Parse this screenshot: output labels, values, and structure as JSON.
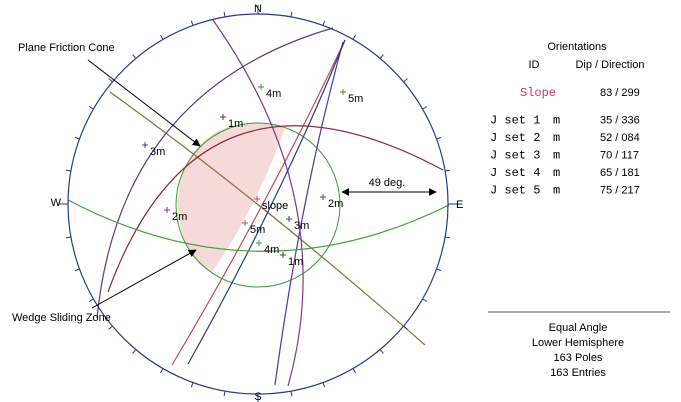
{
  "directions": [
    "N",
    "E",
    "S",
    "W"
  ],
  "annotations": {
    "plane_friction_cone": "Plane Friction Cone",
    "wedge_sliding_zone": "Wedge Sliding Zone",
    "angle": "49 deg."
  },
  "pole_labels": [
    "1m",
    "1m",
    "2m",
    "2m",
    "3m",
    "3m",
    "4m",
    "4m",
    "5m",
    "5m",
    "slope"
  ],
  "legend": {
    "title": "Orientations",
    "headers": [
      "ID",
      "Dip / Direction"
    ],
    "rows": [
      {
        "id": "Slope",
        "dip_direction": "83 / 299"
      },
      {
        "id": "J set 1",
        "kind": "m",
        "dip_direction": "35 / 336"
      },
      {
        "id": "J set 2",
        "kind": "m",
        "dip_direction": "52 / 084"
      },
      {
        "id": "J set 3",
        "kind": "m",
        "dip_direction": "70 / 117"
      },
      {
        "id": "J set 4",
        "kind": "m",
        "dip_direction": "65 / 181"
      },
      {
        "id": "J set 5",
        "kind": "m",
        "dip_direction": "75 / 217"
      }
    ]
  },
  "footer": [
    "Equal Angle",
    "Lower Hemisphere",
    "163 Poles",
    "163 Entries"
  ]
}
